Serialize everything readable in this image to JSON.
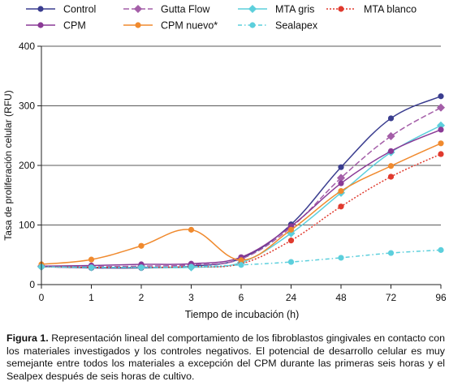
{
  "chart_data": {
    "type": "line",
    "xlabel": "Tiempo de incubación (h)",
    "ylabel": "Tasa de proliferación celular (RFU)",
    "x": [
      "0",
      "1",
      "2",
      "3",
      "6",
      "24",
      "48",
      "72",
      "96"
    ],
    "yticks": [
      "0",
      "100",
      "200",
      "300",
      "400"
    ],
    "ylim": [
      0,
      400
    ],
    "grid": "horizontal",
    "legend_position": "top",
    "series": [
      {
        "name": "Control",
        "color": "#3a3d8f",
        "dash": "solid",
        "marker": "circle",
        "values": [
          30,
          28,
          28,
          31,
          44,
          101,
          197,
          279,
          316
        ]
      },
      {
        "name": "Gutta Flow",
        "color": "#a45ea8",
        "dash": "long-dash",
        "marker": "diamond",
        "values": [
          31,
          30,
          31,
          33,
          43,
          96,
          179,
          249,
          297
        ]
      },
      {
        "name": "MTA gris",
        "color": "#5ccfdc",
        "dash": "solid",
        "marker": "diamond",
        "values": [
          30,
          29,
          29,
          29,
          37,
          86,
          154,
          222,
          267
        ]
      },
      {
        "name": "MTA blanco",
        "color": "#e03a2e",
        "dash": "dotted",
        "marker": "circle",
        "values": [
          30,
          29,
          29,
          30,
          35,
          74,
          131,
          181,
          219
        ]
      },
      {
        "name": "CPM",
        "color": "#8a3a96",
        "dash": "solid",
        "marker": "circle",
        "values": [
          31,
          32,
          34,
          35,
          46,
          98,
          170,
          224,
          260
        ]
      },
      {
        "name": "CPM nuevo*",
        "color": "#f08a2e",
        "dash": "solid",
        "marker": "circle",
        "values": [
          34,
          42,
          65,
          92,
          41,
          92,
          157,
          199,
          237
        ]
      },
      {
        "name": "Sealapex",
        "color": "#5ccfdc",
        "dash": "dash-dot",
        "marker": "circle",
        "values": [
          30,
          29,
          29,
          30,
          33,
          38,
          45,
          53,
          58
        ]
      }
    ]
  },
  "caption": {
    "label": "Figura 1.",
    "text": " Representación lineal del comportamiento de los fibroblastos gingivales en contacto con los materiales investigados y los controles negativos. El potencial de desarrollo celular es muy semejante entre todos los materiales a excepción del CPM durante las primeras seis horas y el Sealpex después de seis horas de cultivo."
  }
}
